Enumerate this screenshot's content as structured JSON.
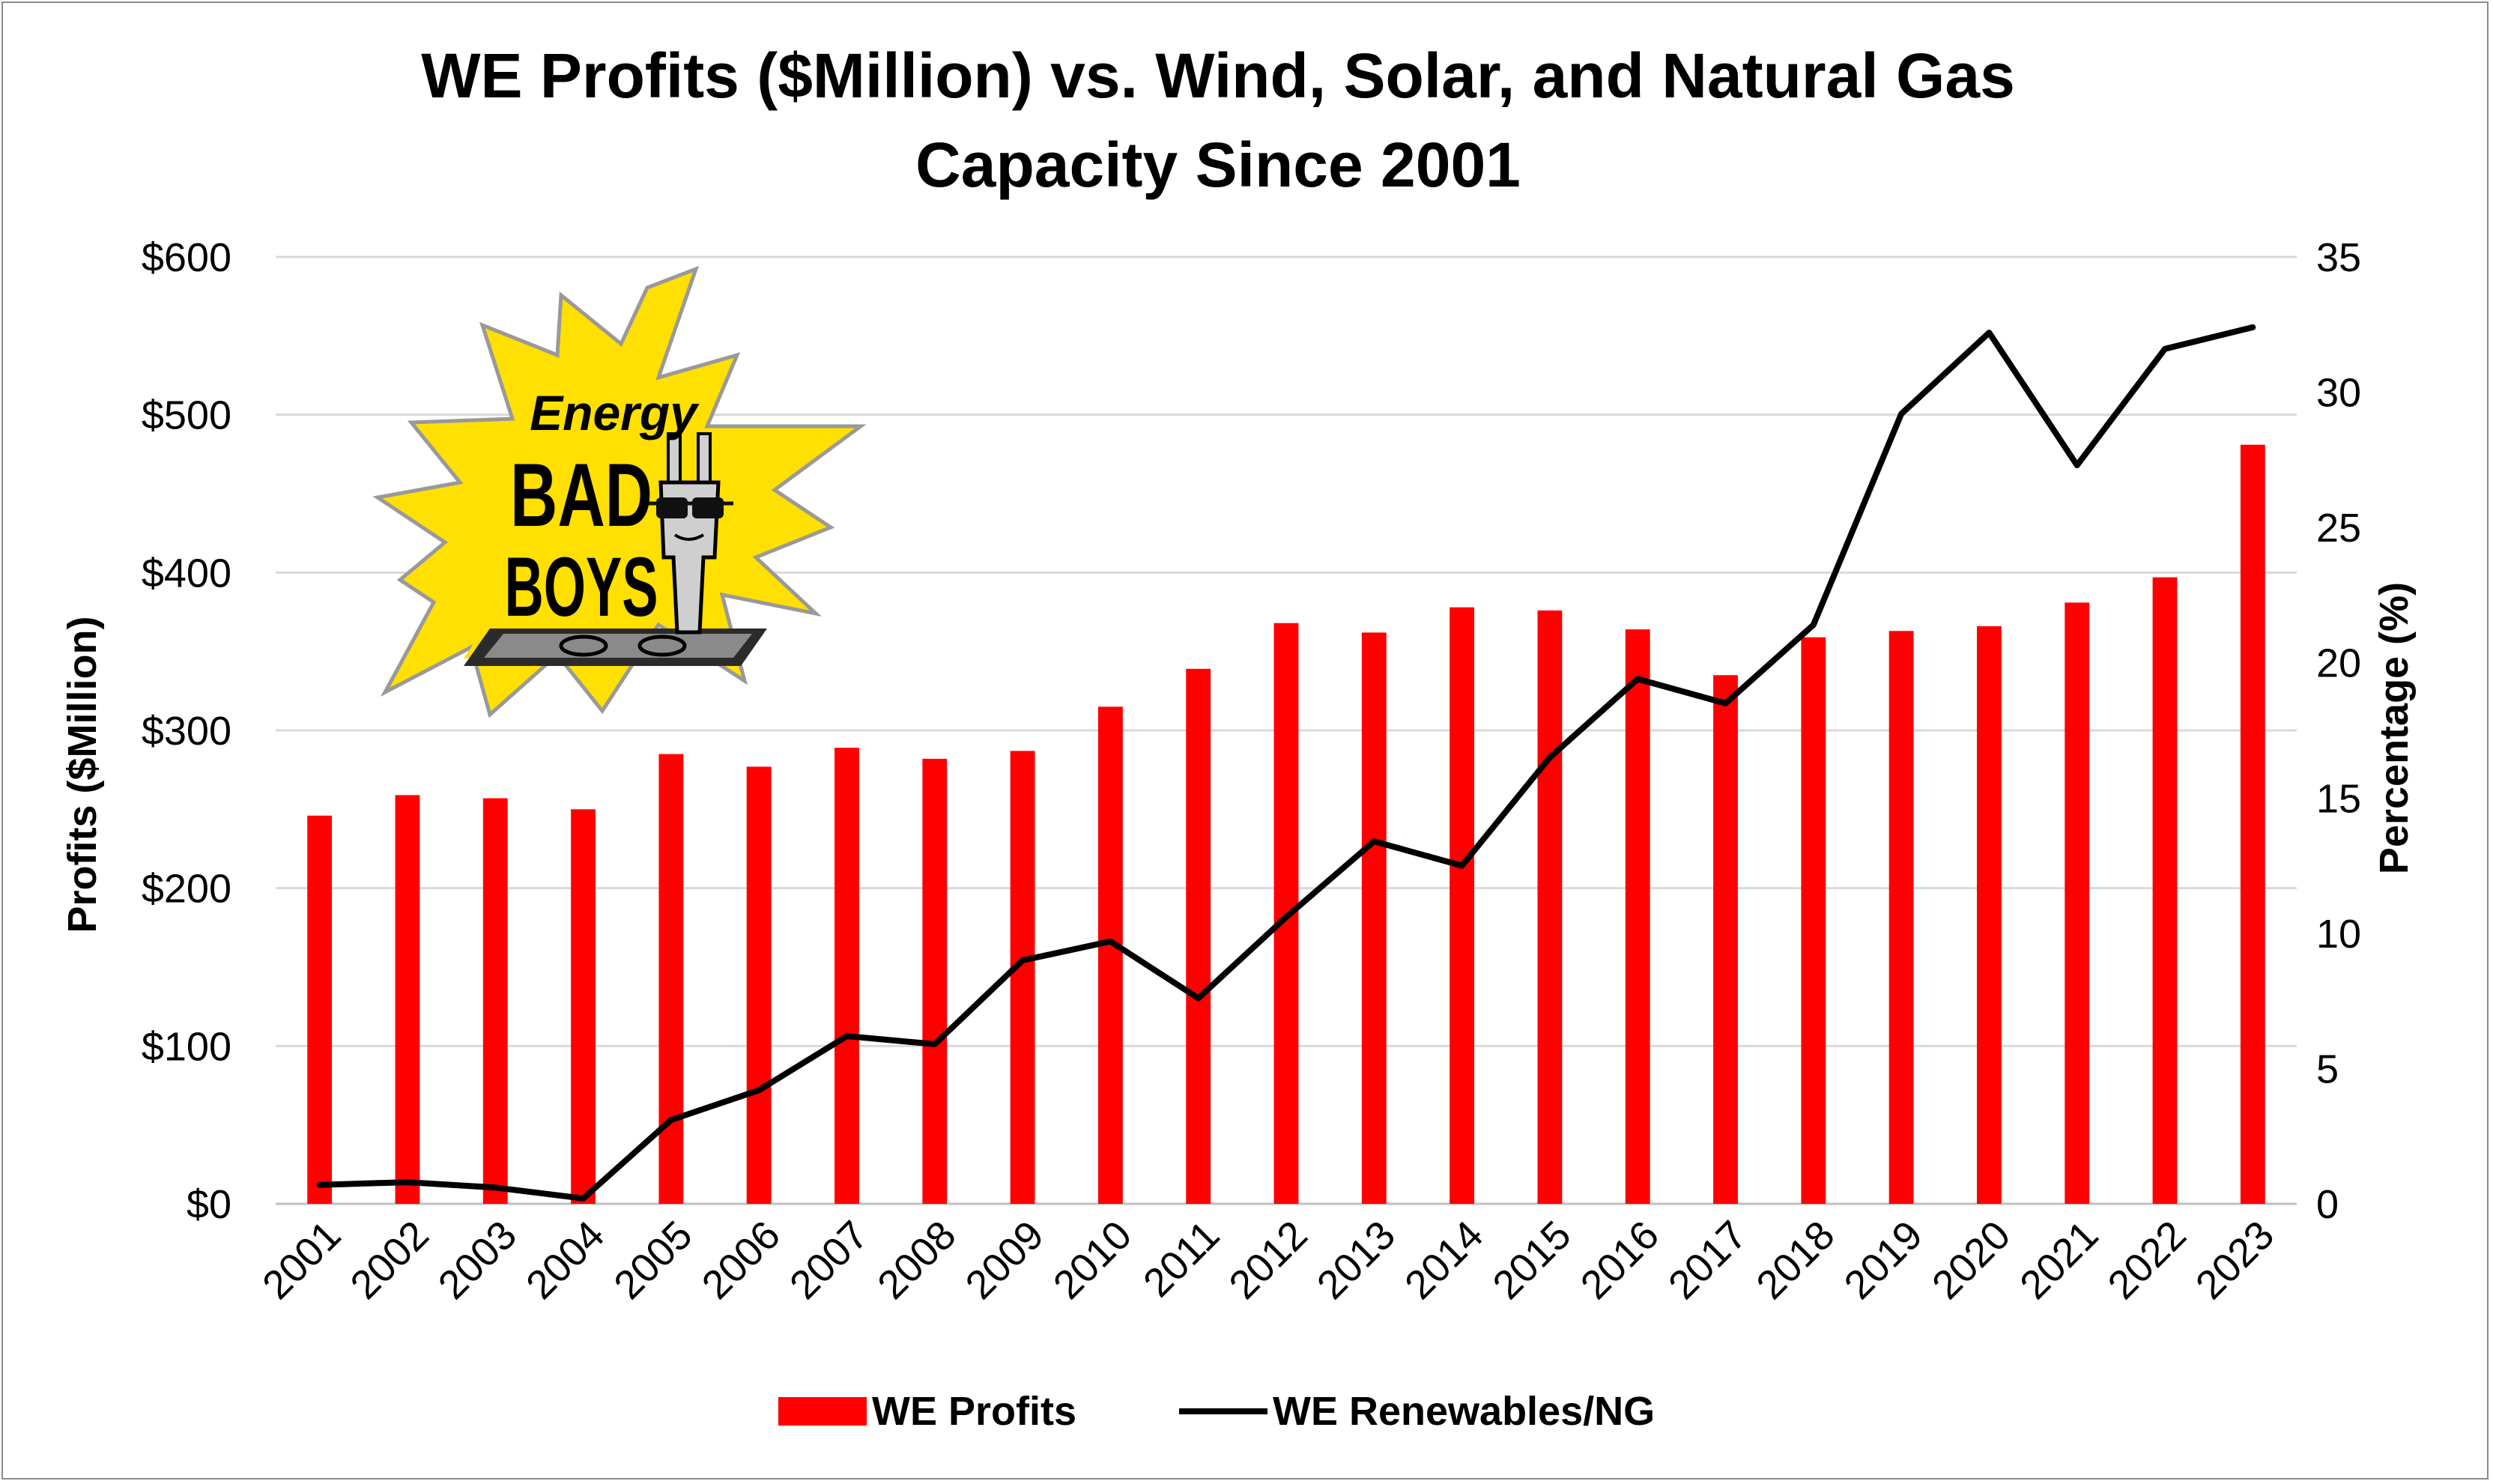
{
  "chart_data": {
    "type": "bar+line",
    "title_lines": [
      "WE Profits ($Million) vs. Wind, Solar, and Natural Gas",
      "Capacity Since 2001"
    ],
    "categories": [
      "2001",
      "2002",
      "2003",
      "2004",
      "2005",
      "2006",
      "2007",
      "2008",
      "2009",
      "2010",
      "2011",
      "2012",
      "2013",
      "2014",
      "2015",
      "2016",
      "2017",
      "2018",
      "2019",
      "2020",
      "2021",
      "2022",
      "2023"
    ],
    "series": [
      {
        "name": "WE Profits",
        "type": "bar",
        "axis": "left",
        "color": "#ff0000",
        "values": [
          246,
          259,
          257,
          250,
          285,
          277,
          289,
          282,
          287,
          315,
          339,
          368,
          362,
          378,
          376,
          364,
          335,
          359,
          363,
          366,
          381,
          397,
          481
        ]
      },
      {
        "name": "WE Renewables/NG",
        "type": "line",
        "axis": "right",
        "color": "#000000",
        "values": [
          0.7,
          0.8,
          0.6,
          0.2,
          3.1,
          4.2,
          6.2,
          5.9,
          9.0,
          9.7,
          7.6,
          10.6,
          13.4,
          12.5,
          16.5,
          19.4,
          18.5,
          21.4,
          29.2,
          32.2,
          27.3,
          31.6,
          32.4
        ]
      }
    ],
    "y_left": {
      "label": "Profits ($Million)",
      "range": [
        0,
        600
      ],
      "ticks": [
        0,
        100,
        200,
        300,
        400,
        500,
        600
      ],
      "tick_labels": [
        "$0",
        "$100",
        "$200",
        "$300",
        "$400",
        "$500",
        "$600"
      ]
    },
    "y_right": {
      "label": "Percentage (%)",
      "range": [
        0,
        35
      ],
      "ticks": [
        0,
        5,
        10,
        15,
        20,
        25,
        30,
        35
      ],
      "tick_labels": [
        "0",
        "5",
        "10",
        "15",
        "20",
        "25",
        "30",
        "35"
      ]
    },
    "grid": true,
    "legend": {
      "position": "bottom",
      "entries": [
        "WE Profits",
        "WE Renewables/NG"
      ]
    }
  },
  "logo": {
    "lines": [
      "Energy",
      "BAD",
      "BOYS"
    ],
    "icon": "plug-with-sunglasses-icon",
    "burst_color": "#ffe000"
  }
}
